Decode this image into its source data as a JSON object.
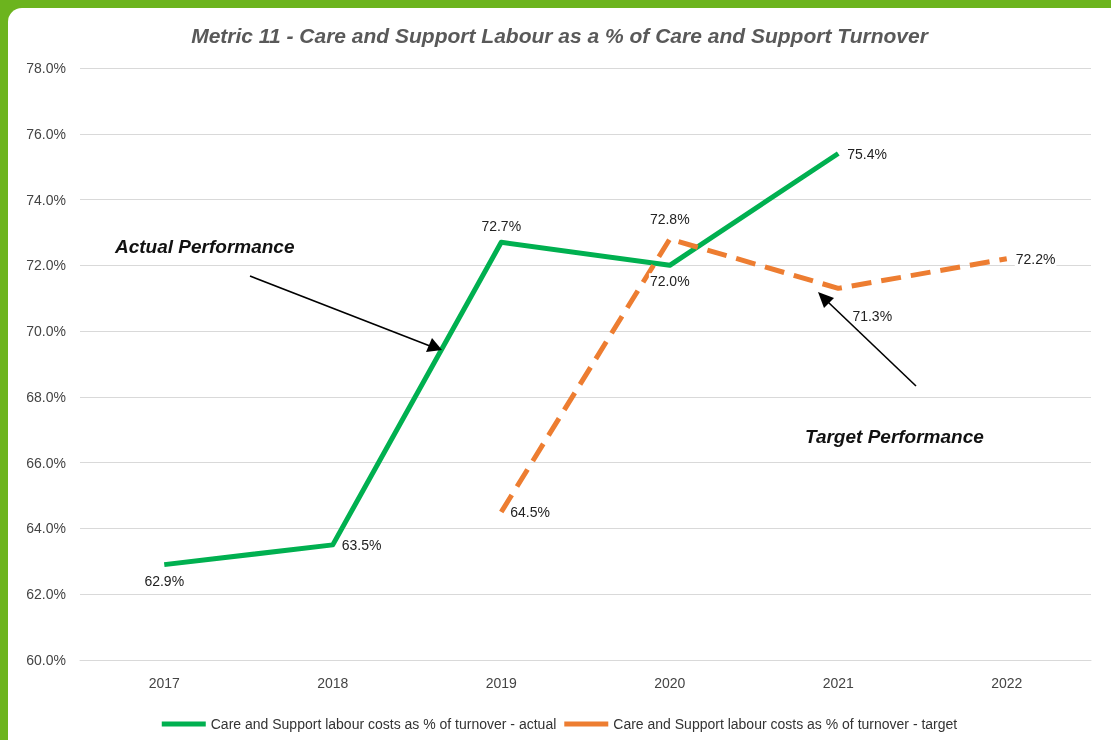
{
  "chart_data": {
    "type": "line",
    "title": "Metric 11 - Care and Support Labour as a % of Care and Support Turnover",
    "categories": [
      "2017",
      "2018",
      "2019",
      "2020",
      "2021",
      "2022"
    ],
    "series": [
      {
        "name": "Care and Support labour costs as % of turnover - actual",
        "color": "#00b050",
        "line_style": "solid",
        "values": [
          62.9,
          63.5,
          72.7,
          72.0,
          75.4,
          null
        ],
        "value_labels": [
          "62.9%",
          "63.5%",
          "72.7%",
          "72.0%",
          "75.4%",
          null
        ]
      },
      {
        "name": "Care and Support labour costs as % of turnover - target",
        "color": "#ed7d31",
        "line_style": "dashed",
        "values": [
          null,
          null,
          64.5,
          72.8,
          71.3,
          72.2
        ],
        "value_labels": [
          null,
          null,
          "64.5%",
          "72.8%",
          "71.3%",
          "72.2%"
        ]
      }
    ],
    "ylim": [
      60,
      78
    ],
    "yticks": [
      {
        "value": 60,
        "label": "60.0%"
      },
      {
        "value": 62,
        "label": "62.0%"
      },
      {
        "value": 64,
        "label": "64.0%"
      },
      {
        "value": 66,
        "label": "66.0%"
      },
      {
        "value": 68,
        "label": "68.0%"
      },
      {
        "value": 70,
        "label": "70.0%"
      },
      {
        "value": 72,
        "label": "72.0%"
      },
      {
        "value": 74,
        "label": "74.0%"
      },
      {
        "value": 76,
        "label": "76.0%"
      },
      {
        "value": 78,
        "label": "78.0%"
      }
    ],
    "grid": "y",
    "legend": "bottom",
    "marker": "none",
    "annotations": [
      "Actual Performance",
      "Target Performance"
    ]
  }
}
